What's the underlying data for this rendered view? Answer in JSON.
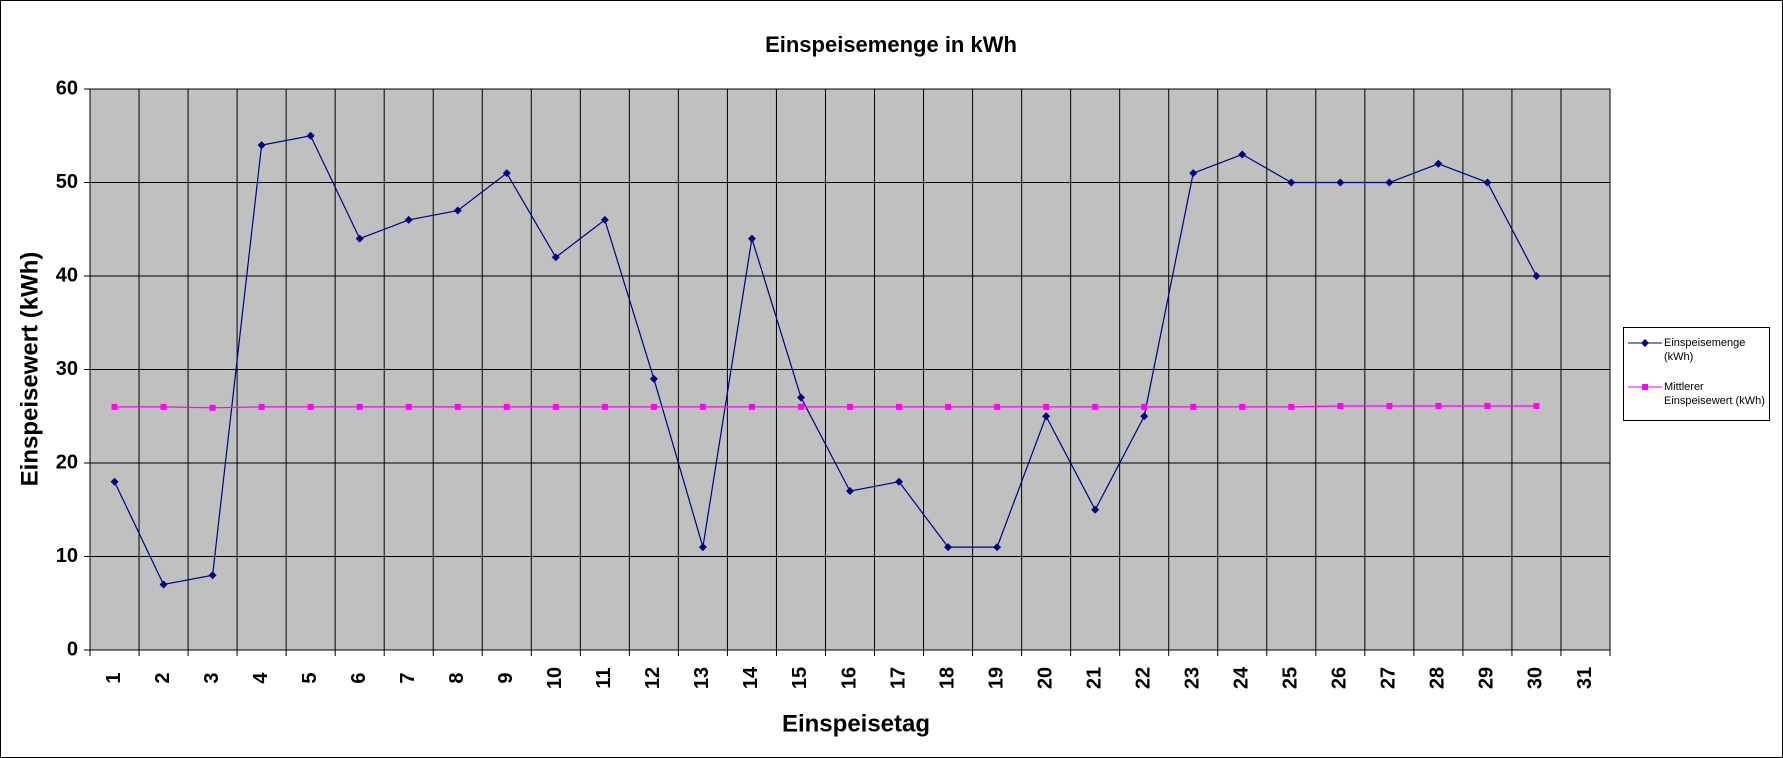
{
  "chart_data": {
    "type": "line",
    "title": "Einspeisemenge in kWh",
    "x_label": "Einspeisetag",
    "y_label": "Einspeisewert  (kWh)",
    "categories": [
      "1",
      "2",
      "3",
      "4",
      "5",
      "6",
      "7",
      "8",
      "9",
      "10",
      "11",
      "12",
      "13",
      "14",
      "15",
      "16",
      "17",
      "18",
      "19",
      "20",
      "21",
      "22",
      "23",
      "24",
      "25",
      "26",
      "27",
      "28",
      "29",
      "30",
      "31"
    ],
    "series": [
      {
        "name": "Einspeisemenge (kWh)",
        "color": "#000080",
        "marker": "diamond",
        "values": [
          18,
          7,
          8,
          54,
          55,
          44,
          46,
          47,
          51,
          42,
          46,
          29,
          11,
          44,
          27,
          17,
          18,
          11,
          11,
          25,
          15,
          25,
          51,
          53,
          50,
          50,
          50,
          52,
          50,
          40,
          null
        ]
      },
      {
        "name": "Mittlerer Einspeisewert (kWh)",
        "color": "#ff00ff",
        "marker": "square",
        "values": [
          26,
          26,
          25.9,
          26,
          26,
          26,
          26,
          26,
          26,
          26,
          26,
          26,
          26,
          26,
          26,
          26,
          26,
          26,
          26,
          26,
          26,
          26,
          26,
          26,
          26,
          26.1,
          26.1,
          26.1,
          26.1,
          26.1,
          null
        ]
      }
    ],
    "ylim": [
      0,
      60
    ],
    "yticks": [
      0,
      10,
      20,
      30,
      40,
      50,
      60
    ],
    "grid": true,
    "legend": "right"
  }
}
